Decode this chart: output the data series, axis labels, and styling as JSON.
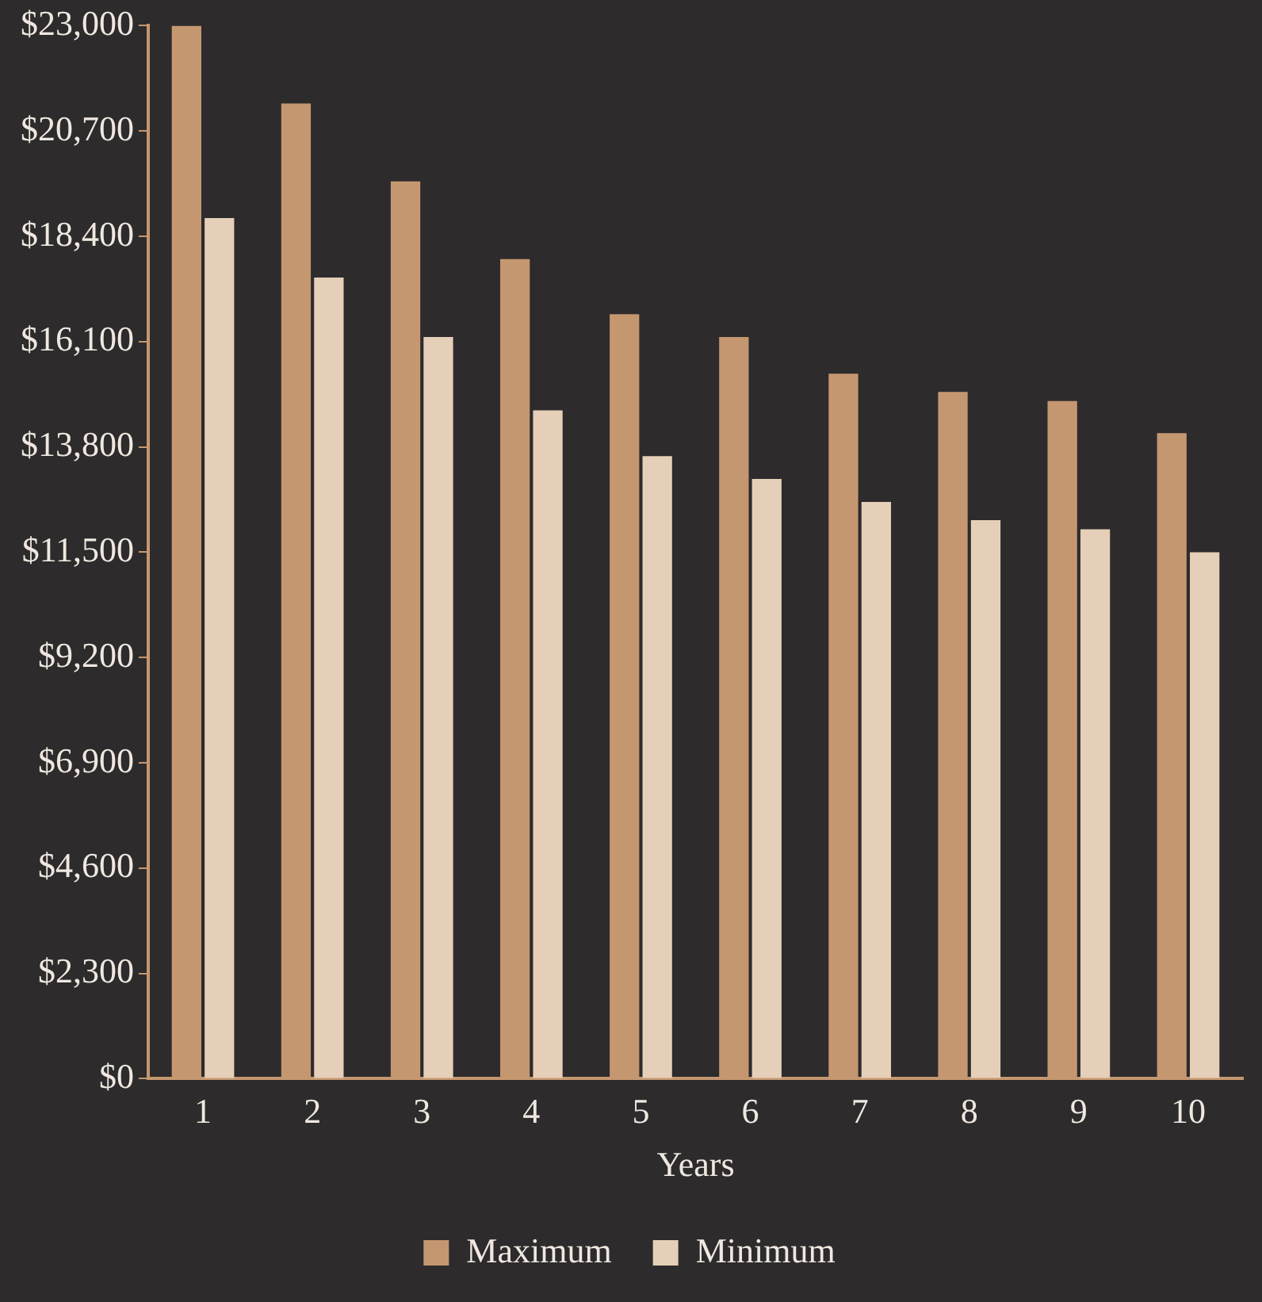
{
  "chart_data": {
    "type": "bar",
    "xlabel": "Years",
    "categories": [
      "1",
      "2",
      "3",
      "4",
      "5",
      "6",
      "7",
      "8",
      "9",
      "10"
    ],
    "series": [
      {
        "name": "Maximum",
        "color": "#c59770",
        "values": [
          23000,
          21300,
          19600,
          17900,
          16700,
          16200,
          15400,
          15000,
          14800,
          14100
        ]
      },
      {
        "name": "Minimum",
        "color": "#e6cfb8",
        "values": [
          18800,
          17500,
          16200,
          14600,
          13600,
          13100,
          12600,
          12200,
          12000,
          11500
        ]
      }
    ],
    "ylim": [
      0,
      23000
    ],
    "yticks": [
      {
        "value": 0,
        "label": "$0"
      },
      {
        "value": 2300,
        "label": "$2,300"
      },
      {
        "value": 4600,
        "label": "$4,600"
      },
      {
        "value": 6900,
        "label": "$6,900"
      },
      {
        "value": 9200,
        "label": "$9,200"
      },
      {
        "value": 11500,
        "label": "$11,500"
      },
      {
        "value": 13800,
        "label": "$13,800"
      },
      {
        "value": 16100,
        "label": "$16,100"
      },
      {
        "value": 18400,
        "label": "$18,400"
      },
      {
        "value": 20700,
        "label": "$20,700"
      },
      {
        "value": 23000,
        "label": "$23,000"
      }
    ],
    "grid": false,
    "legend": "bottom"
  }
}
